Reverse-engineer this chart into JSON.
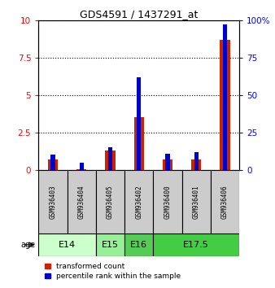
{
  "title": "GDS4591 / 1437291_at",
  "samples": [
    "GSM936403",
    "GSM936404",
    "GSM936405",
    "GSM936402",
    "GSM936400",
    "GSM936401",
    "GSM936406"
  ],
  "transformed_count": [
    0.7,
    0.05,
    1.3,
    3.5,
    0.7,
    0.7,
    8.7
  ],
  "percentile_rank": [
    10,
    5,
    15,
    62,
    11,
    12,
    97
  ],
  "ylim_left": [
    0,
    10
  ],
  "ylim_right": [
    0,
    100
  ],
  "yticks_left": [
    0,
    2.5,
    5,
    7.5,
    10
  ],
  "yticks_right": [
    0,
    25,
    50,
    75,
    100
  ],
  "age_groups": [
    {
      "label": "E14",
      "span": 2,
      "color": "#ccffcc"
    },
    {
      "label": "E15",
      "span": 1,
      "color": "#99ee99"
    },
    {
      "label": "E16",
      "span": 1,
      "color": "#55cc55"
    },
    {
      "label": "E17.5",
      "span": 3,
      "color": "#44cc44"
    }
  ],
  "bar_color_red": "#cc2200",
  "bar_color_blue": "#0000cc",
  "bar_width": 0.35,
  "blue_bar_width": 0.15,
  "sample_box_color": "#cccccc",
  "legend_red": "transformed count",
  "legend_blue": "percentile rank within the sample"
}
